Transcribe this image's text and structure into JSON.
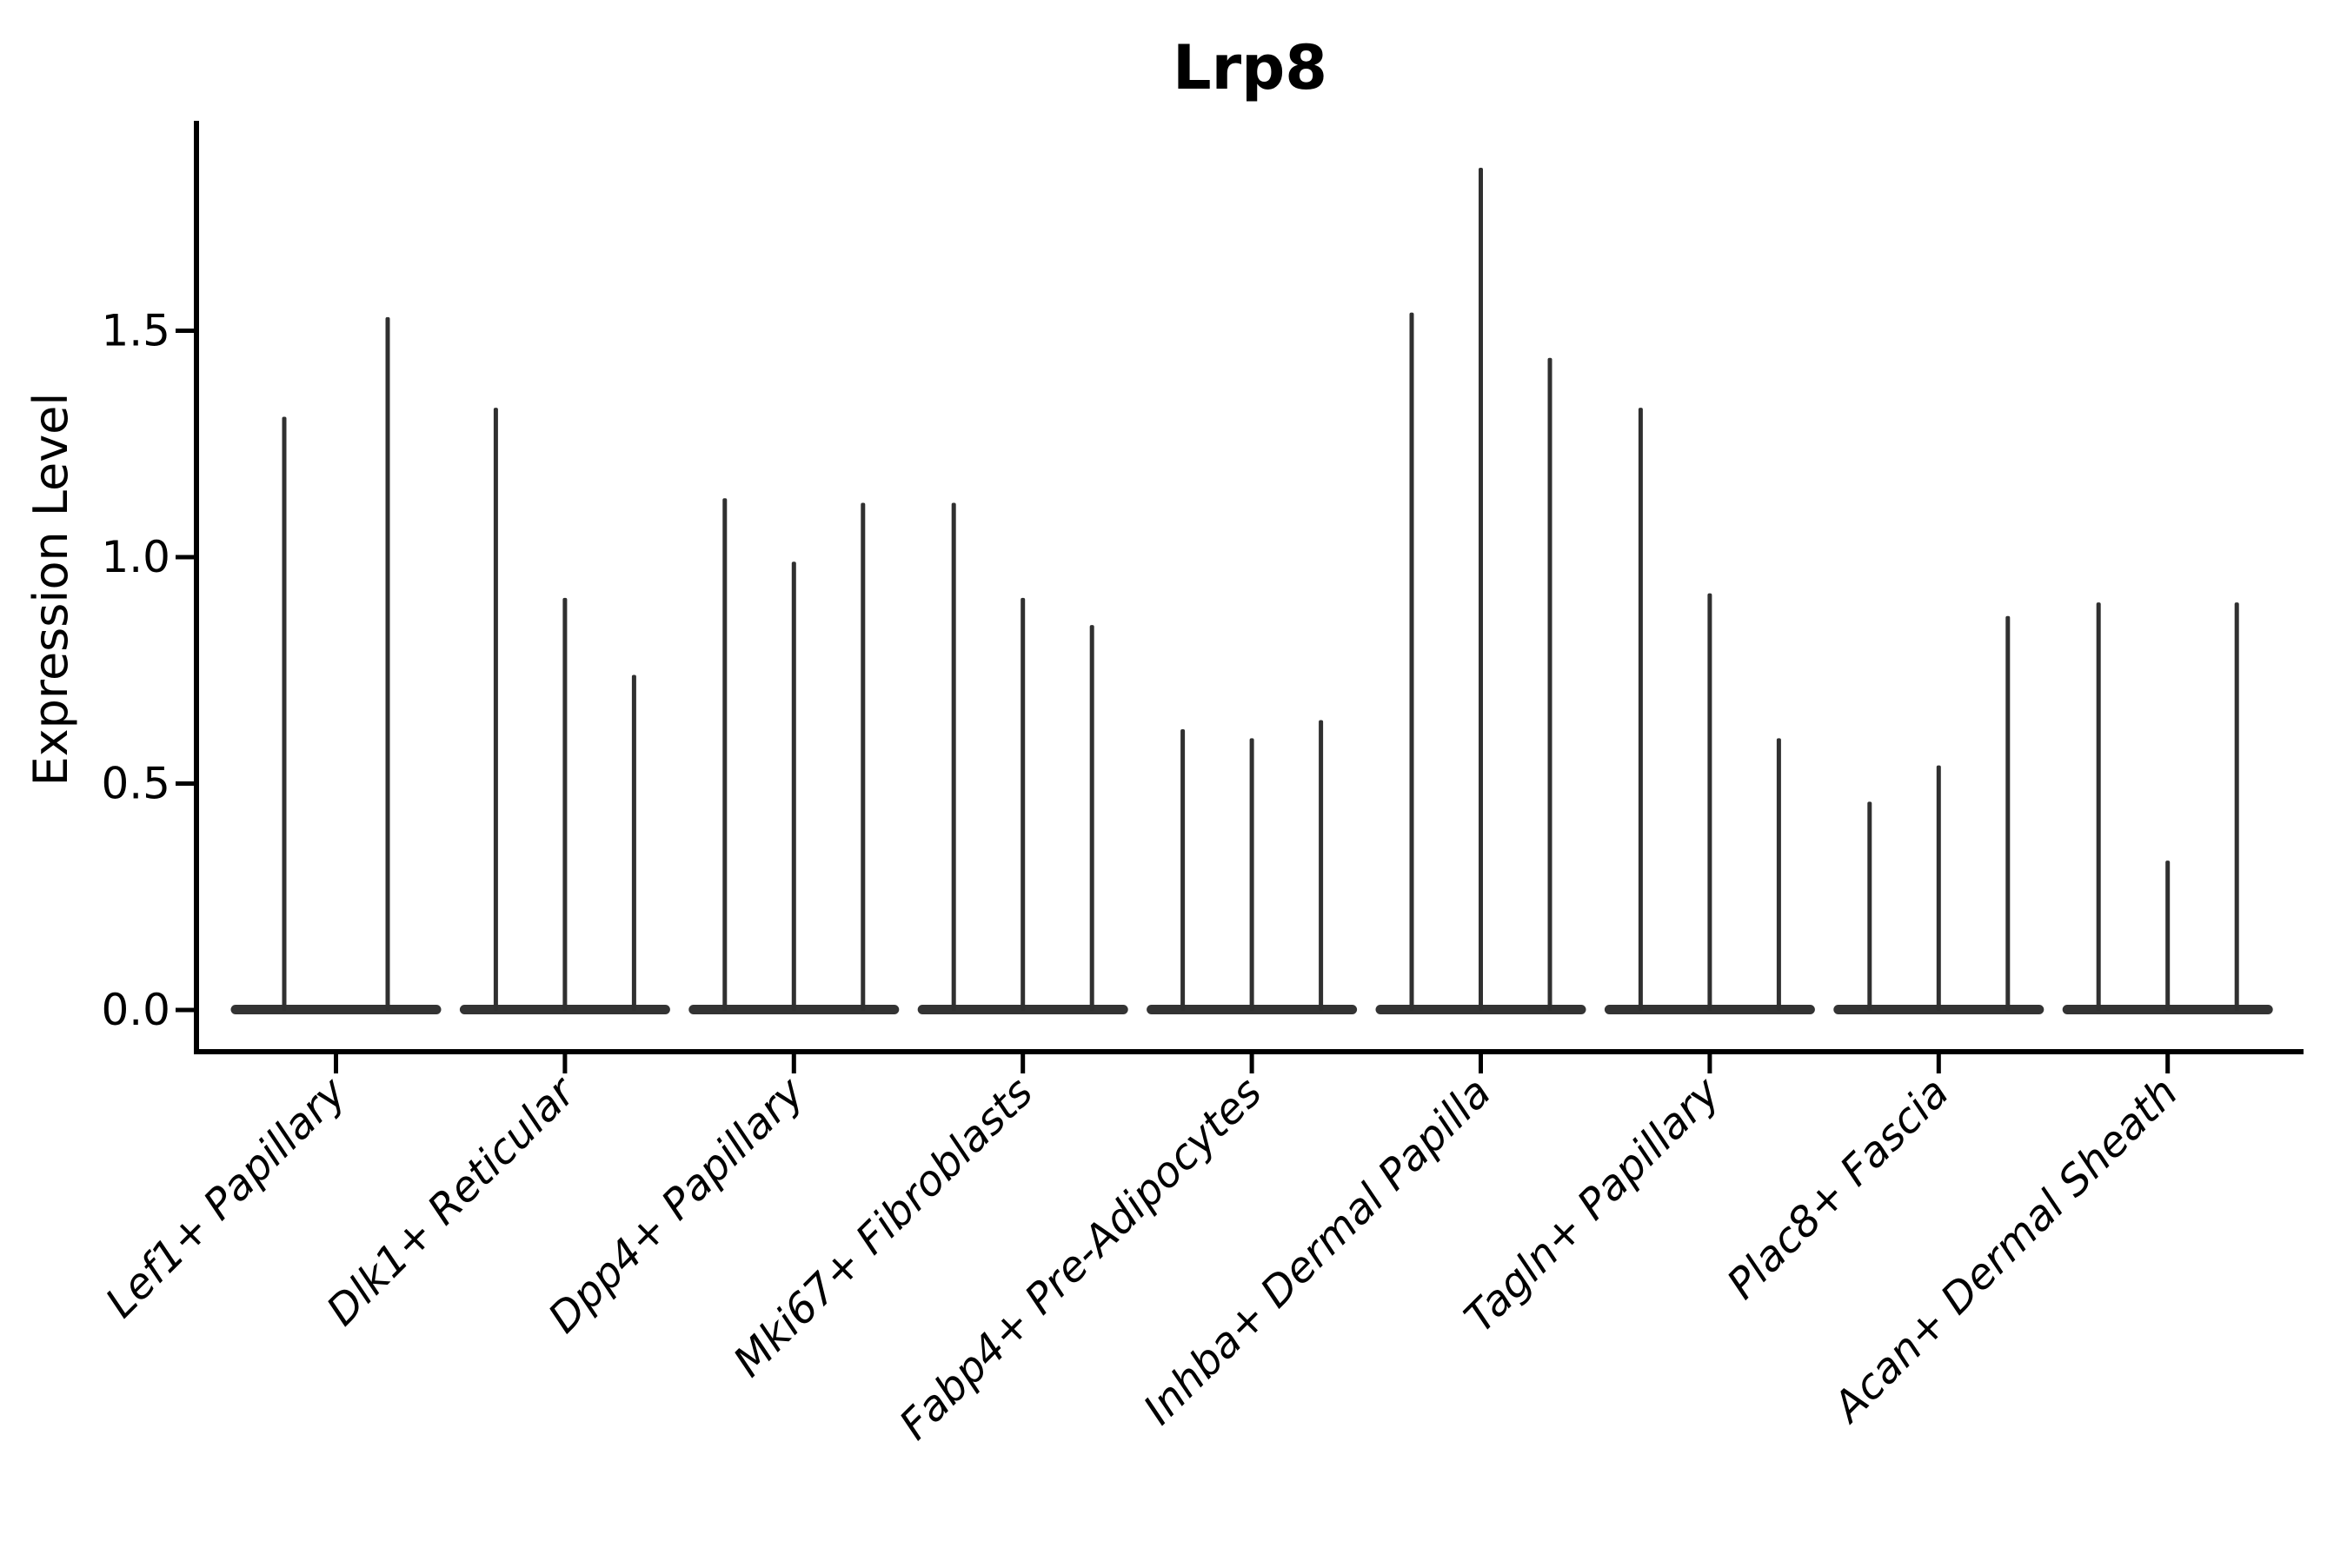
{
  "title": "Lrp8",
  "ylabel": "Expression Level",
  "chart_data": {
    "type": "violin",
    "title": "Lrp8",
    "xlabel": "",
    "ylabel": "Expression Level",
    "ylim": [
      -0.1,
      1.96
    ],
    "yticks": [
      0.0,
      0.5,
      1.0,
      1.5
    ],
    "ytick_labels": [
      "0.0",
      "0.5",
      "1.0",
      "1.5"
    ],
    "grid": false,
    "legend": "none",
    "categories": [
      "Lef1+ Papillary",
      "Dlk1+ Reticular",
      "Dpp4+ Papillary",
      "Mki67+ Fibroblasts",
      "Fabp4+ Pre-Adipocytes",
      "Inhba+ Dermal Papilla",
      "Tagln+ Papillary",
      "Plac8+ Fascia",
      "Acan+ Dermal Sheath"
    ],
    "groups": [
      {
        "label": "Lef1+ Papillary",
        "spike_values": [
          1.31,
          1.53
        ]
      },
      {
        "label": "Dlk1+ Reticular",
        "spike_values": [
          1.33,
          0.91,
          0.74
        ]
      },
      {
        "label": "Dpp4+ Papillary",
        "spike_values": [
          1.13,
          0.99,
          1.12
        ]
      },
      {
        "label": "Mki67+ Fibroblasts",
        "spike_values": [
          1.12,
          0.91,
          0.85
        ]
      },
      {
        "label": "Fabp4+ Pre-Adipocytes",
        "spike_values": [
          0.62,
          0.6,
          0.64
        ]
      },
      {
        "label": "Inhba+ Dermal Papilla",
        "spike_values": [
          1.54,
          1.86,
          1.44
        ]
      },
      {
        "label": "Tagln+ Papillary",
        "spike_values": [
          1.33,
          0.92,
          0.6
        ]
      },
      {
        "label": "Plac8+ Fascia",
        "spike_values": [
          0.46,
          0.54,
          0.87
        ]
      },
      {
        "label": "Acan+ Dermal Sheath",
        "spike_values": [
          0.9,
          0.33,
          0.9
        ]
      }
    ],
    "colors": {
      "violin_base": "#333333",
      "spike": "#303030",
      "axis": "#000000",
      "text": "#000000",
      "background": "#ffffff"
    }
  }
}
